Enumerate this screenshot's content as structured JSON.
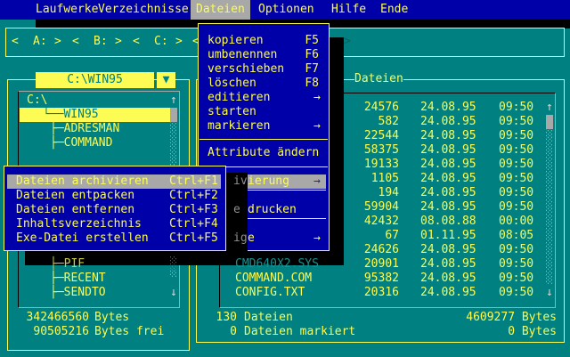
{
  "menu_bar": {
    "items": [
      {
        "label": "Laufwerke"
      },
      {
        "label": "Verzeichnisse"
      },
      {
        "label": "Dateien",
        "active": true
      },
      {
        "label": "Optionen"
      },
      {
        "label": "Hilfe"
      },
      {
        "label": "Ende"
      }
    ]
  },
  "drive_bar": {
    "drives": [
      "A:",
      "B:",
      "C:"
    ],
    "left_arrow": "<",
    "right_arrow": ">",
    "trailing_left_arrow": "<",
    "shadowed_right_arrow": ">"
  },
  "left_panel": {
    "title": "C:\\WIN95",
    "dropdown_icon": "▼",
    "scroll_up_icon": "↑",
    "scroll_down_icon": "↓",
    "tree": [
      {
        "prefix": "",
        "label": "C:\\"
      },
      {
        "prefix": "└──",
        "label": "WIN95",
        "selected": true
      },
      {
        "prefix": "├─",
        "label": "ADRESMAN"
      },
      {
        "prefix": "├─",
        "label": "COMMAND"
      },
      {
        "prefix": "├─",
        "label": "PIF",
        "shadowed": true
      },
      {
        "prefix": "├─",
        "label": "RECENT"
      },
      {
        "prefix": "├─",
        "label": "SENDTO"
      }
    ],
    "bytes_total": "342466560",
    "bytes_total_label": "Bytes",
    "bytes_free": "90505216",
    "bytes_free_label": "Bytes frei"
  },
  "right_panel": {
    "title": "Dateien",
    "scroll_up_icon": "↑",
    "scroll_down_icon": "↓",
    "files": [
      {
        "name": "",
        "size": "24576",
        "date": "24.08.95",
        "time": "09:50"
      },
      {
        "name": "",
        "size": "582",
        "date": "24.08.95",
        "time": "09:50"
      },
      {
        "name": "",
        "size": "22544",
        "date": "24.08.95",
        "time": "09:50"
      },
      {
        "name": "",
        "size": "58375",
        "date": "24.08.95",
        "time": "09:50"
      },
      {
        "name": "",
        "size": "19133",
        "date": "24.08.95",
        "time": "09:50"
      },
      {
        "name": "",
        "size": "1105",
        "date": "24.08.95",
        "time": "09:50"
      },
      {
        "name": "",
        "size": "194",
        "date": "24.08.95",
        "time": "09:50"
      },
      {
        "name": "",
        "size": "59904",
        "date": "24.08.95",
        "time": "09:50"
      },
      {
        "name": "",
        "size": "42432",
        "date": "08.08.88",
        "time": "00:00"
      },
      {
        "name": "",
        "size": "67",
        "date": "01.11.95",
        "time": "08:05"
      },
      {
        "name": "",
        "size": "24626",
        "date": "24.08.95",
        "time": "09:50"
      },
      {
        "name": "CMD640X2.SYS",
        "size": "20901",
        "date": "24.08.95",
        "time": "09:50",
        "shadowed": true
      },
      {
        "name": "COMMAND.COM",
        "size": "95382",
        "date": "24.08.95",
        "time": "09:50"
      },
      {
        "name": "CONFIG.TXT",
        "size": "20316",
        "date": "24.08.95",
        "time": "09:50"
      }
    ],
    "status": {
      "files_count": "130",
      "files_count_label": "Dateien",
      "total_bytes": "4609277 Bytes",
      "marked_count": "0",
      "marked_label": "Dateien markiert",
      "marked_bytes": "0 Bytes"
    }
  },
  "dropdown_menu": {
    "items": [
      {
        "label": "kopieren",
        "shortcut": "F5"
      },
      {
        "label": "umbenennen",
        "shortcut": "F6"
      },
      {
        "label": "verschieben",
        "shortcut": "F7"
      },
      {
        "label": "löschen",
        "shortcut": "F8"
      },
      {
        "label": "editieren",
        "submenu": true
      },
      {
        "label": "starten"
      },
      {
        "label": "markieren",
        "submenu": true
      },
      {
        "label": "Attribute ändern"
      }
    ],
    "submenu_arrow": "→",
    "partial_items": [
      {
        "shadow_text": "iv",
        "label": "ierung",
        "submenu": true,
        "highlighted": true
      },
      {
        "shadow_text": "e",
        "label": "drucken"
      },
      {
        "shadow_text": "ig",
        "label": "e",
        "submenu": true
      }
    ]
  },
  "submenu_popup": {
    "items": [
      {
        "label": "Dateien archivieren",
        "shortcut": "Ctrl+F1",
        "highlighted": true
      },
      {
        "label": "Dateien entpacken",
        "shortcut": "Ctrl+F2"
      },
      {
        "label": "Dateien entfernen",
        "shortcut": "Ctrl+F3"
      },
      {
        "label": "Inhaltsverzeichnis",
        "shortcut": "Ctrl+F4"
      },
      {
        "label": "Exe-Datei erstellen",
        "shortcut": "Ctrl+F5"
      }
    ]
  },
  "colors": {
    "desktop": "#008080",
    "menu": "#0000a8",
    "accent_yellow": "#fcfc54",
    "highlight_gray": "#a8a8a8",
    "shadow": "#000000"
  }
}
